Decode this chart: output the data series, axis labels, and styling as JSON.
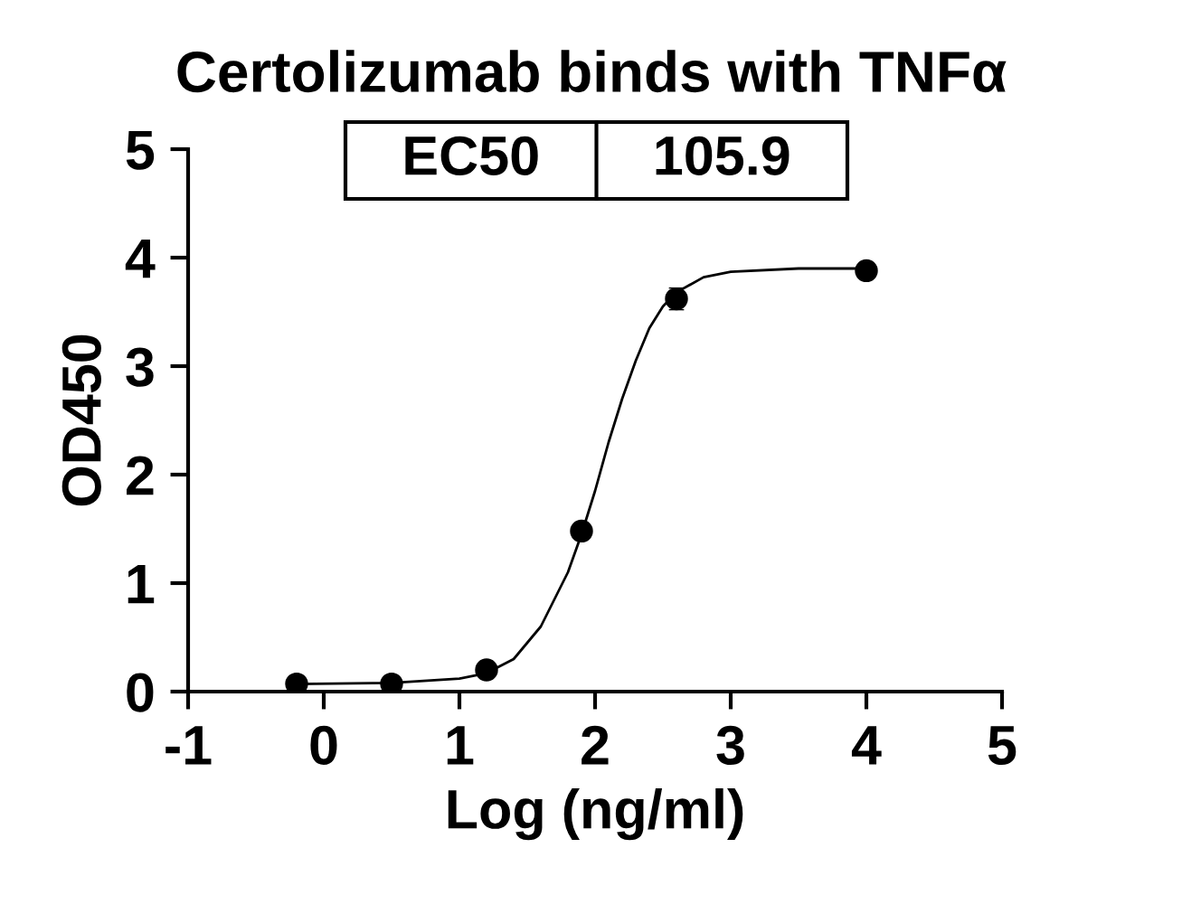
{
  "chart_data": {
    "type": "scatter",
    "title": "Certolizumab binds with TNFα",
    "xlabel": "Log (ng/ml)",
    "ylabel": "OD450",
    "xlim": [
      -1,
      5
    ],
    "xticks": [
      -1,
      0,
      1,
      2,
      3,
      4,
      5
    ],
    "ylim": [
      0,
      5
    ],
    "yticks": [
      0,
      1,
      2,
      3,
      4,
      5
    ],
    "grid": false,
    "legend": false,
    "series": [
      {
        "color": "#000000",
        "marker": "circle",
        "x": [
          -0.2,
          0.5,
          1.2,
          1.9,
          2.6,
          4.0
        ],
        "values": [
          0.07,
          0.07,
          0.2,
          1.48,
          3.62,
          3.88
        ],
        "errors": [
          null,
          null,
          null,
          null,
          0.1,
          null
        ]
      },
      {
        "type": "line",
        "color": "#000000",
        "line_style": "solid",
        "x": [
          -0.2,
          0.5,
          1.0,
          1.2,
          1.4,
          1.6,
          1.8,
          1.9,
          2.0,
          2.1,
          2.2,
          2.3,
          2.4,
          2.5,
          2.6,
          2.8,
          3.0,
          3.5,
          4.0
        ],
        "values": [
          0.07,
          0.08,
          0.12,
          0.17,
          0.3,
          0.6,
          1.1,
          1.45,
          1.85,
          2.3,
          2.7,
          3.05,
          3.35,
          3.55,
          3.68,
          3.82,
          3.87,
          3.9,
          3.9
        ]
      }
    ],
    "annotations": [
      "EC50",
      "105.9"
    ]
  }
}
